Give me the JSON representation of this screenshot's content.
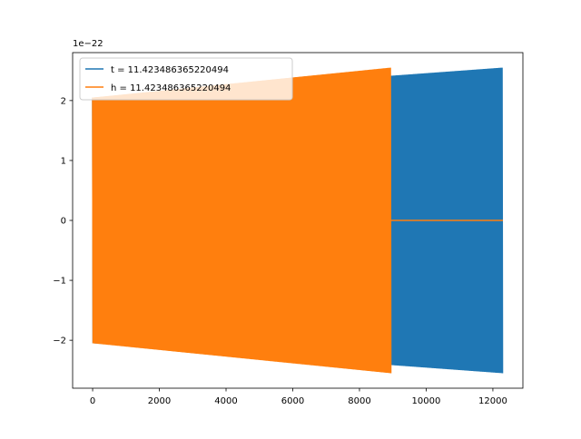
{
  "chart_data": {
    "type": "line",
    "title": "",
    "xlabel": "",
    "ylabel": "",
    "offset_text": "1e−22",
    "xlim": [
      -600,
      12900
    ],
    "ylim": [
      -2.8,
      2.8
    ],
    "x_ticks": [
      0,
      2000,
      4000,
      6000,
      8000,
      10000,
      12000
    ],
    "x_tick_labels": [
      "0",
      "2000",
      "4000",
      "6000",
      "8000",
      "10000",
      "12000"
    ],
    "y_ticks": [
      -2,
      -1,
      0,
      1,
      2
    ],
    "y_tick_labels": [
      "−2",
      "−1",
      "0",
      "1",
      "2"
    ],
    "grid": false,
    "legend_position": "upper-left",
    "series": [
      {
        "name": "t = 11.423486365220494",
        "color": "#1f77b4",
        "envelope": {
          "x_start": 0,
          "x_end": 12300,
          "amp_start": 2.05,
          "amp_end": 2.55
        }
      },
      {
        "name": "h = 11.423486365220494",
        "color": "#ff7f0e",
        "envelope": {
          "x_start": 0,
          "x_end": 8950,
          "amp_start": 2.05,
          "amp_end": 2.55
        },
        "zero_tail": {
          "x_start": 8950,
          "x_end": 12300,
          "value": 0
        }
      }
    ]
  }
}
